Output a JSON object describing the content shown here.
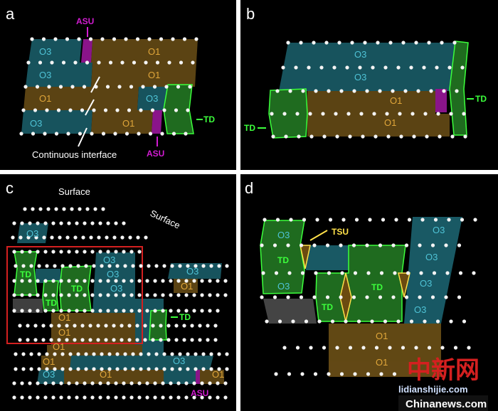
{
  "panels": {
    "a": {
      "letter": "a",
      "labels": [
        "O3",
        "O1",
        "O3",
        "O1",
        "O1",
        "O3",
        "O3",
        "O1"
      ],
      "asu": "ASU",
      "td": "TD",
      "caption": "Continuous interface"
    },
    "b": {
      "letter": "b",
      "labels": [
        "O3",
        "O3",
        "O1",
        "O1"
      ],
      "td": "TD"
    },
    "c": {
      "letter": "c",
      "surface": "Surface",
      "labels_o3": [
        "O3",
        "O3",
        "O3",
        "O3",
        "O3",
        "O3",
        "O3"
      ],
      "labels_o1": [
        "O1",
        "O1",
        "O1",
        "O1",
        "O1",
        "O1",
        "O1"
      ],
      "td": "TD",
      "asu": "ASU"
    },
    "d": {
      "letter": "d",
      "labels_o3": [
        "O3",
        "O3",
        "O3",
        "O3",
        "O3",
        "O3"
      ],
      "labels_o1": [
        "O1",
        "O1"
      ],
      "td": "TD",
      "tsu": "TSU"
    }
  },
  "watermark": {
    "chinese": "中新网",
    "site1": "lidianshijie.com",
    "site2": "Chinanews.com"
  },
  "colors": {
    "o3": "#1f6f7d",
    "o1": "#7a5a1a",
    "td": "#1f6b1f",
    "td_outline": "#3cff3c",
    "asu": "#8a148a",
    "tsu": "#ffe14a",
    "frame": "#d42020"
  }
}
